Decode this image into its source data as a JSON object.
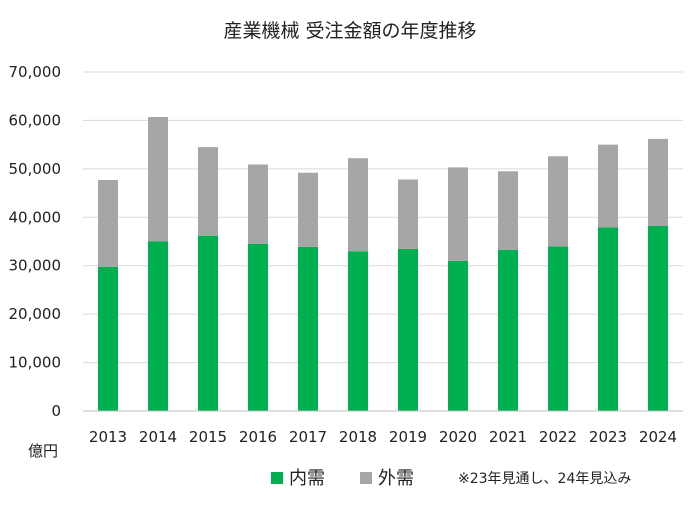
{
  "chart_data": {
    "type": "bar",
    "stacked": true,
    "title": "産業機械 受注金額の年度推移",
    "categories": [
      "2013",
      "2014",
      "2015",
      "2016",
      "2017",
      "2018",
      "2019",
      "2020",
      "2021",
      "2022",
      "2023",
      "2024"
    ],
    "series": [
      {
        "name": "内需",
        "color": "#00b050",
        "values": [
          29800,
          35000,
          36200,
          34500,
          33900,
          33000,
          33500,
          31000,
          33300,
          34000,
          37900,
          38200
        ]
      },
      {
        "name": "外需",
        "color": "#a6a6a6",
        "values": [
          17900,
          25700,
          18300,
          16400,
          15300,
          19200,
          14300,
          19300,
          16200,
          18600,
          17100,
          18000
        ]
      }
    ],
    "ylim": [
      0,
      70000
    ],
    "yticks": [
      0,
      10000,
      20000,
      30000,
      40000,
      50000,
      60000,
      70000
    ],
    "ytick_labels": [
      "0",
      "10,000",
      "20,000",
      "30,000",
      "40,000",
      "50,000",
      "60,000",
      "70,000"
    ],
    "ylabel": "億円",
    "xlabel": "",
    "grid": true,
    "legend_position": "bottom",
    "note": "※23年見通し、24年見込み"
  }
}
